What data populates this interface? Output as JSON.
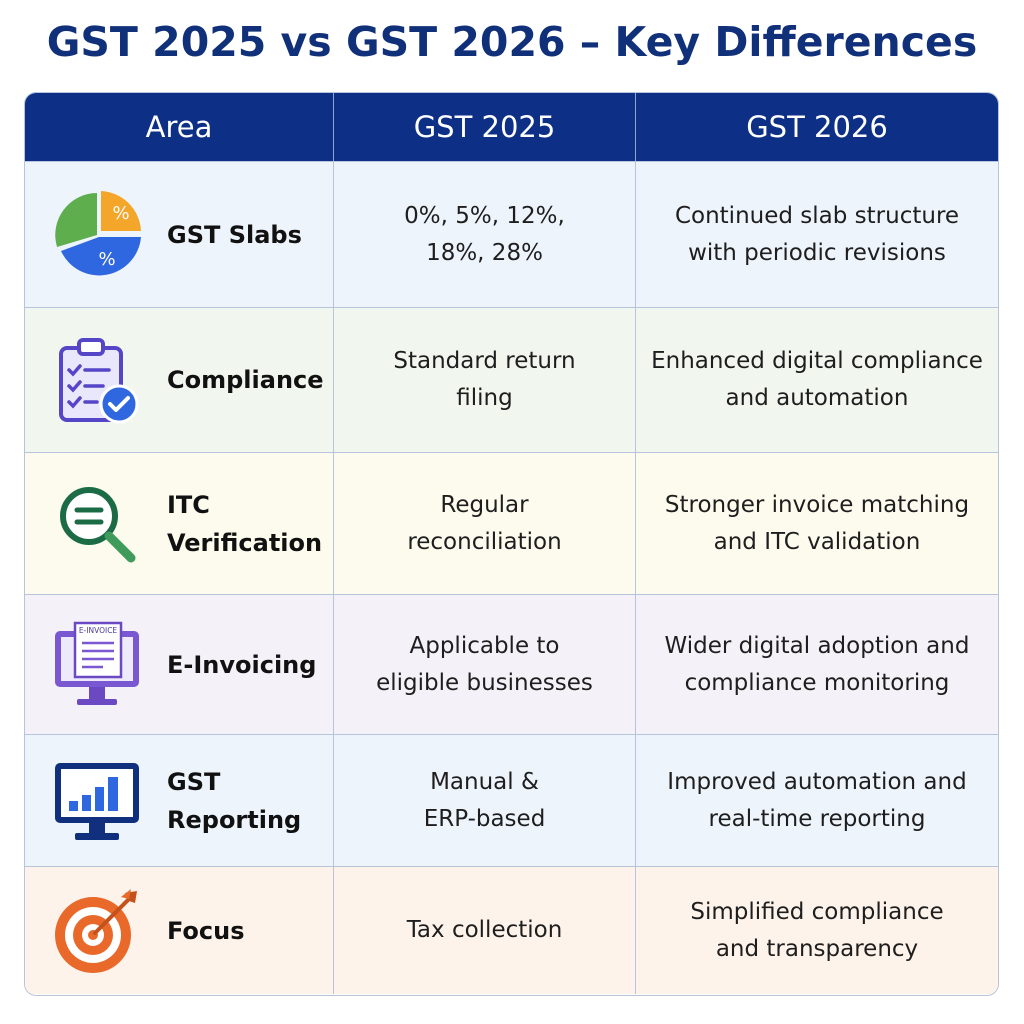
{
  "title": "GST 2025 vs GST 2026 – Key Differences",
  "table": {
    "headers": [
      "Area",
      "GST 2025",
      "GST 2026"
    ],
    "rows": [
      {
        "icon": "pie-chart-percent-icon",
        "area": "GST Slabs",
        "gst2025": "0%, 5%, 12%,\n18%, 28%",
        "gst2026": "Continued slab structure\nwith periodic revisions"
      },
      {
        "icon": "clipboard-checklist-icon",
        "area": "Compliance",
        "gst2025": "Standard return\nfiling",
        "gst2026": "Enhanced digital compliance\nand automation"
      },
      {
        "icon": "magnifier-icon",
        "area": "ITC\nVerification",
        "gst2025": "Regular\nreconciliation",
        "gst2026": "Stronger invoice matching\nand ITC validation"
      },
      {
        "icon": "monitor-invoice-icon",
        "area": "E-Invoicing",
        "gst2025": "Applicable to\neligible businesses",
        "gst2026": "Wider digital adoption and\ncompliance monitoring"
      },
      {
        "icon": "monitor-bar-chart-icon",
        "area": "GST\nReporting",
        "gst2025": "Manual &\nERP-based",
        "gst2026": "Improved automation and\nreal-time reporting"
      },
      {
        "icon": "target-arrow-icon",
        "area": "Focus",
        "gst2025": "Tax collection",
        "gst2026": "Simplified compliance\nand transparency"
      }
    ]
  },
  "icon_labels": {
    "pie_percent_top": "%",
    "pie_percent_bottom": "%",
    "einvoice_tag": "E-INVOICE"
  },
  "colors": {
    "title": "#10307a",
    "header_bg": "#0d2f86",
    "header_text": "#ffffff",
    "border": "#b7c4dc"
  }
}
